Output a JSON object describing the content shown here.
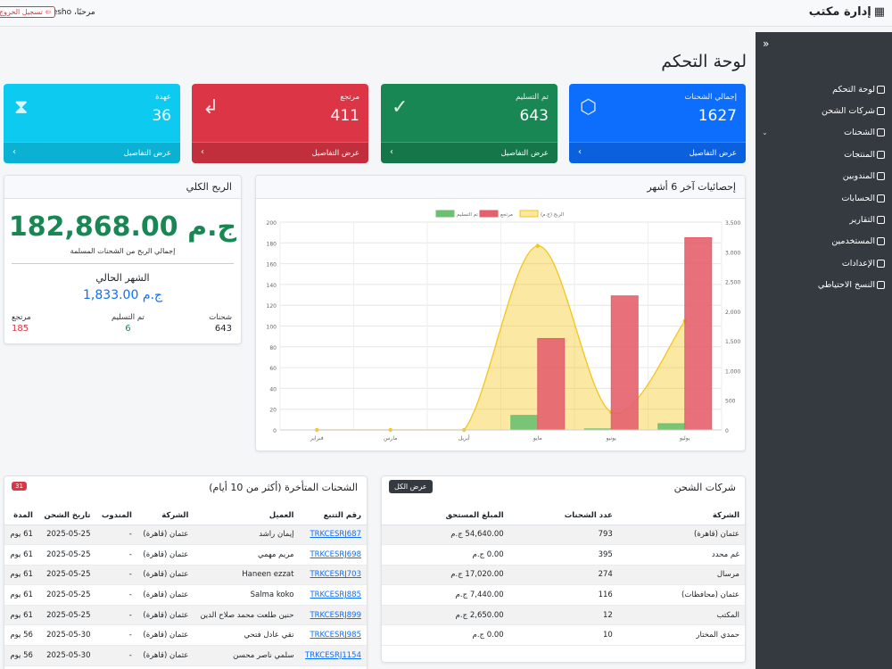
{
  "header": {
    "brand": "إدارة مكتب",
    "greeting": "مرحبًا، hesho",
    "logout": "تسجيل الخروج"
  },
  "sidebar": {
    "items": [
      {
        "label": "لوحة التحكم",
        "icon": "dashboard-icon"
      },
      {
        "label": "شركات الشحن",
        "icon": "building-icon"
      },
      {
        "label": "الشحنات",
        "icon": "box-icon",
        "has_submenu": true
      },
      {
        "label": "المنتجات",
        "icon": "bag-icon"
      },
      {
        "label": "المندوبين",
        "icon": "person-badge-icon"
      },
      {
        "label": "الحسابات",
        "icon": "cash-icon"
      },
      {
        "label": "التقارير",
        "icon": "bar-chart-icon"
      },
      {
        "label": "المستخدمين",
        "icon": "people-icon"
      },
      {
        "label": "الإعدادات",
        "icon": "gear-icon"
      },
      {
        "label": "النسخ الاحتياطي",
        "icon": "cloud-icon"
      }
    ]
  },
  "page_title": "لوحة التحكم",
  "cards": [
    {
      "label": "إجمالي الشحنات",
      "value": "1627",
      "footer": "عرض التفاصيل",
      "color": "#0d6efd",
      "icon": "box-icon"
    },
    {
      "label": "تم التسليم",
      "value": "643",
      "footer": "عرض التفاصيل",
      "color": "#198754",
      "icon": "check-circle-icon"
    },
    {
      "label": "مرتجع",
      "value": "411",
      "footer": "عرض التفاصيل",
      "color": "#dc3545",
      "icon": "return-arrow-icon"
    },
    {
      "label": "عهدة",
      "value": "36",
      "footer": "عرض التفاصيل",
      "color": "#0dcaf0",
      "icon": "hourglass-icon"
    }
  ],
  "profit": {
    "title": "الربح الكلي",
    "value": "182,868.00 ج.م",
    "subtitle": "إجمالي الربح من الشحنات المسلمة",
    "month_label": "الشهر الحالي",
    "month_value": "1,833.00 ج.م",
    "stats": [
      {
        "label": "شحنات",
        "value": "643",
        "color": "#212529"
      },
      {
        "label": "تم التسليم",
        "value": "6",
        "color": "#198754"
      },
      {
        "label": "مرتجع",
        "value": "185",
        "color": "#dc3545"
      }
    ]
  },
  "chart_panel": {
    "title": "إحصائيات آخر 6 أشهر"
  },
  "chart_data": {
    "type": "bar",
    "categories": [
      "فبراير",
      "مارس",
      "أبريل",
      "مايو",
      "يونيو",
      "يوليو"
    ],
    "series": [
      {
        "name": "تم التسليم",
        "type": "bar",
        "axis": "left",
        "color": "#6cc070",
        "values": [
          0,
          0,
          0,
          14,
          1,
          6
        ]
      },
      {
        "name": "مرتجع",
        "type": "bar",
        "axis": "left",
        "color": "#e4606d",
        "values": [
          0,
          0,
          0,
          88,
          129,
          185
        ]
      },
      {
        "name": "الربح (ج.م)",
        "type": "area",
        "axis": "right",
        "color": "#f5c518",
        "values": [
          0,
          0,
          0,
          3100,
          300,
          1833
        ]
      }
    ],
    "y_left": {
      "min": 0,
      "max": 200,
      "ticks": [
        "0",
        "20",
        "40",
        "60",
        "80",
        "100",
        "120",
        "140",
        "160",
        "180",
        "200"
      ]
    },
    "y_right": {
      "min": 0,
      "max": 3500,
      "ticks": [
        "0",
        "500",
        "1,000",
        "1,500",
        "2,000",
        "2,500",
        "3,000",
        "3,500"
      ]
    },
    "legend_position": "top",
    "grid": true
  },
  "late": {
    "title": "الشحنات المتأخرة (أكثر من 10 أيام)",
    "badge": "31",
    "headers": [
      "رقم التتبع",
      "العميل",
      "الشركة",
      "المندوب",
      "تاريخ الشحن",
      "المدة"
    ],
    "rows": [
      [
        "TRKCESRJ687",
        "إيمان راشد",
        "عثمان (قاهرة)",
        "-",
        "2025-05-25",
        "61 يوم"
      ],
      [
        "TRKCESRJ698",
        "مريم مهمي",
        "عثمان (قاهرة)",
        "-",
        "2025-05-25",
        "61 يوم"
      ],
      [
        "TRKCESRJ703",
        "Haneen ezzat",
        "عثمان (قاهرة)",
        "-",
        "2025-05-25",
        "61 يوم"
      ],
      [
        "TRKCESRJ885",
        "Salma koko",
        "عثمان (قاهرة)",
        "-",
        "2025-05-25",
        "61 يوم"
      ],
      [
        "TRKCESRJ899",
        "حنين طلعت محمد صلاح الدين",
        "عثمان (قاهرة)",
        "-",
        "2025-05-25",
        "61 يوم"
      ],
      [
        "TRKCESRJ985",
        "تقي عادل فتحي",
        "عثمان (قاهرة)",
        "-",
        "2025-05-30",
        "56 يوم"
      ],
      [
        "TRKCESRJ1154",
        "سلمي ناصر محسن",
        "عثمان (قاهرة)",
        "-",
        "2025-05-30",
        "56 يوم"
      ]
    ]
  },
  "companies": {
    "title": "شركات الشحن",
    "view_all": "عرض الكل",
    "headers": [
      "الشركة",
      "عدد الشحنات",
      "المبلغ المستحق"
    ],
    "rows": [
      [
        "عثمان (قاهرة)",
        "793",
        "54,640.00 ج.م"
      ],
      [
        "غم محدد",
        "395",
        "0.00 ج.م"
      ],
      [
        "مرسال",
        "274",
        "17,020.00 ج.م"
      ],
      [
        "عثمان (محافظات)",
        "116",
        "7,440.00 ج.م"
      ],
      [
        "المكتب",
        "12",
        "2,650.00 ج.م"
      ],
      [
        "حمدي المختار",
        "10",
        "0.00 ج.م"
      ]
    ]
  }
}
